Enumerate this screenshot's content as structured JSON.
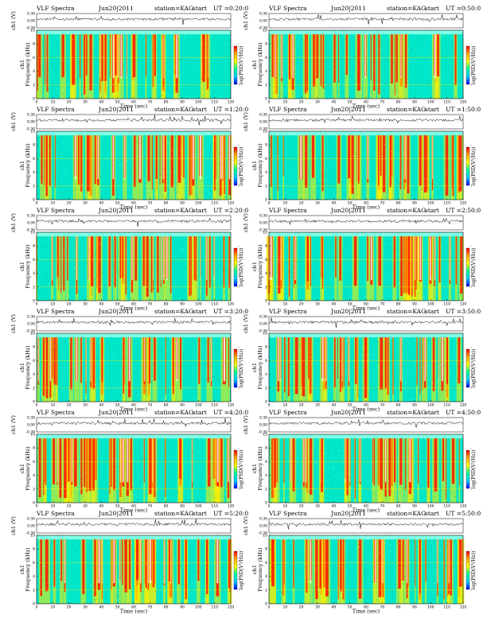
{
  "page": {
    "title": "VLF Spectra station KAG Jun 20 2011, start UT 0:20 to 5:50"
  },
  "panel_common": {
    "kind": "VLF Spectra",
    "date": "Jun20|2011",
    "station": "station=KAG",
    "start_label": "start",
    "wave_ylabel": "ch1 (V)",
    "freq_ylabel_top": "ch1",
    "freq_ylabel": "Frequency (kHz)",
    "xlabel": "Time (sec)",
    "colorbar_label": "log(PSD(V²/Hz))"
  },
  "panels": [
    {
      "ut": "UT =0:20:0"
    },
    {
      "ut": "UT =0:50:0"
    },
    {
      "ut": "UT =1:20:0"
    },
    {
      "ut": "UT =1:50:0"
    },
    {
      "ut": "UT =2:20:0"
    },
    {
      "ut": "UT =2:50:0"
    },
    {
      "ut": "UT =3:20:0"
    },
    {
      "ut": "UT =3:50:0"
    },
    {
      "ut": "UT =4:20:0"
    },
    {
      "ut": "UT =4:50:0"
    },
    {
      "ut": "UT =5:20:0"
    },
    {
      "ut": "UT =5:50:0"
    }
  ],
  "colors": {
    "background": "#00e6c8",
    "mid": "#a8e83c",
    "high": "#ffee00",
    "peak": "#ff1a00",
    "gap": "#ffffff",
    "colorbar": [
      "#ff0000",
      "#ffaa00",
      "#ffff00",
      "#00ff99",
      "#00ccff",
      "#0000ff"
    ]
  },
  "chart_data": {
    "type": "heatmap",
    "description_units": {
      "x": "Time (sec)",
      "y": "Frequency (kHz)",
      "wave": "ch1 (V)"
    },
    "xlim": [
      0,
      120
    ],
    "ylim": [
      0,
      10
    ],
    "wave_ylim": [
      -0.3,
      0.3
    ],
    "x_ticks": [
      0,
      10,
      20,
      30,
      40,
      50,
      60,
      70,
      80,
      90,
      100,
      110,
      120
    ],
    "y_ticks": [
      0,
      2,
      4,
      6,
      8,
      10
    ],
    "wave_ticks": [
      "0.30",
      "0.00",
      "-0.30"
    ],
    "colorbar_ticks": [
      "-",
      "-"
    ]
  }
}
